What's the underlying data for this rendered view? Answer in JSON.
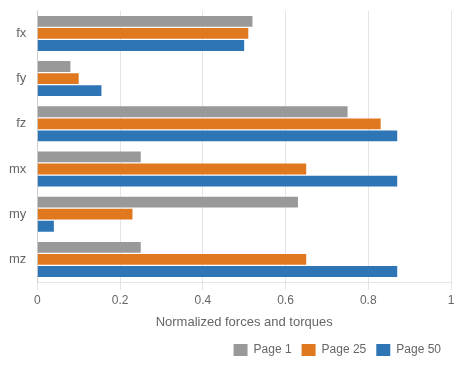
{
  "chart_data": {
    "type": "bar",
    "orientation": "horizontal",
    "categories": [
      "fx",
      "fy",
      "fz",
      "mx",
      "my",
      "mz"
    ],
    "series": [
      {
        "name": "Page 1",
        "color": "#999999",
        "values": [
          0.52,
          0.08,
          0.75,
          0.25,
          0.63,
          0.25
        ]
      },
      {
        "name": "Page 25",
        "color": "#E07820",
        "values": [
          0.51,
          0.1,
          0.83,
          0.65,
          0.23,
          0.65
        ]
      },
      {
        "name": "Page 50",
        "color": "#2E75B6",
        "values": [
          0.5,
          0.155,
          0.87,
          0.87,
          0.04,
          0.87
        ]
      }
    ],
    "xlabel": "Normalized forces and torques",
    "xlim": [
      0,
      1.0
    ],
    "xticks": [
      0,
      0.2,
      0.4,
      0.6,
      0.8,
      1
    ],
    "grid": true,
    "legend": "lower right"
  }
}
